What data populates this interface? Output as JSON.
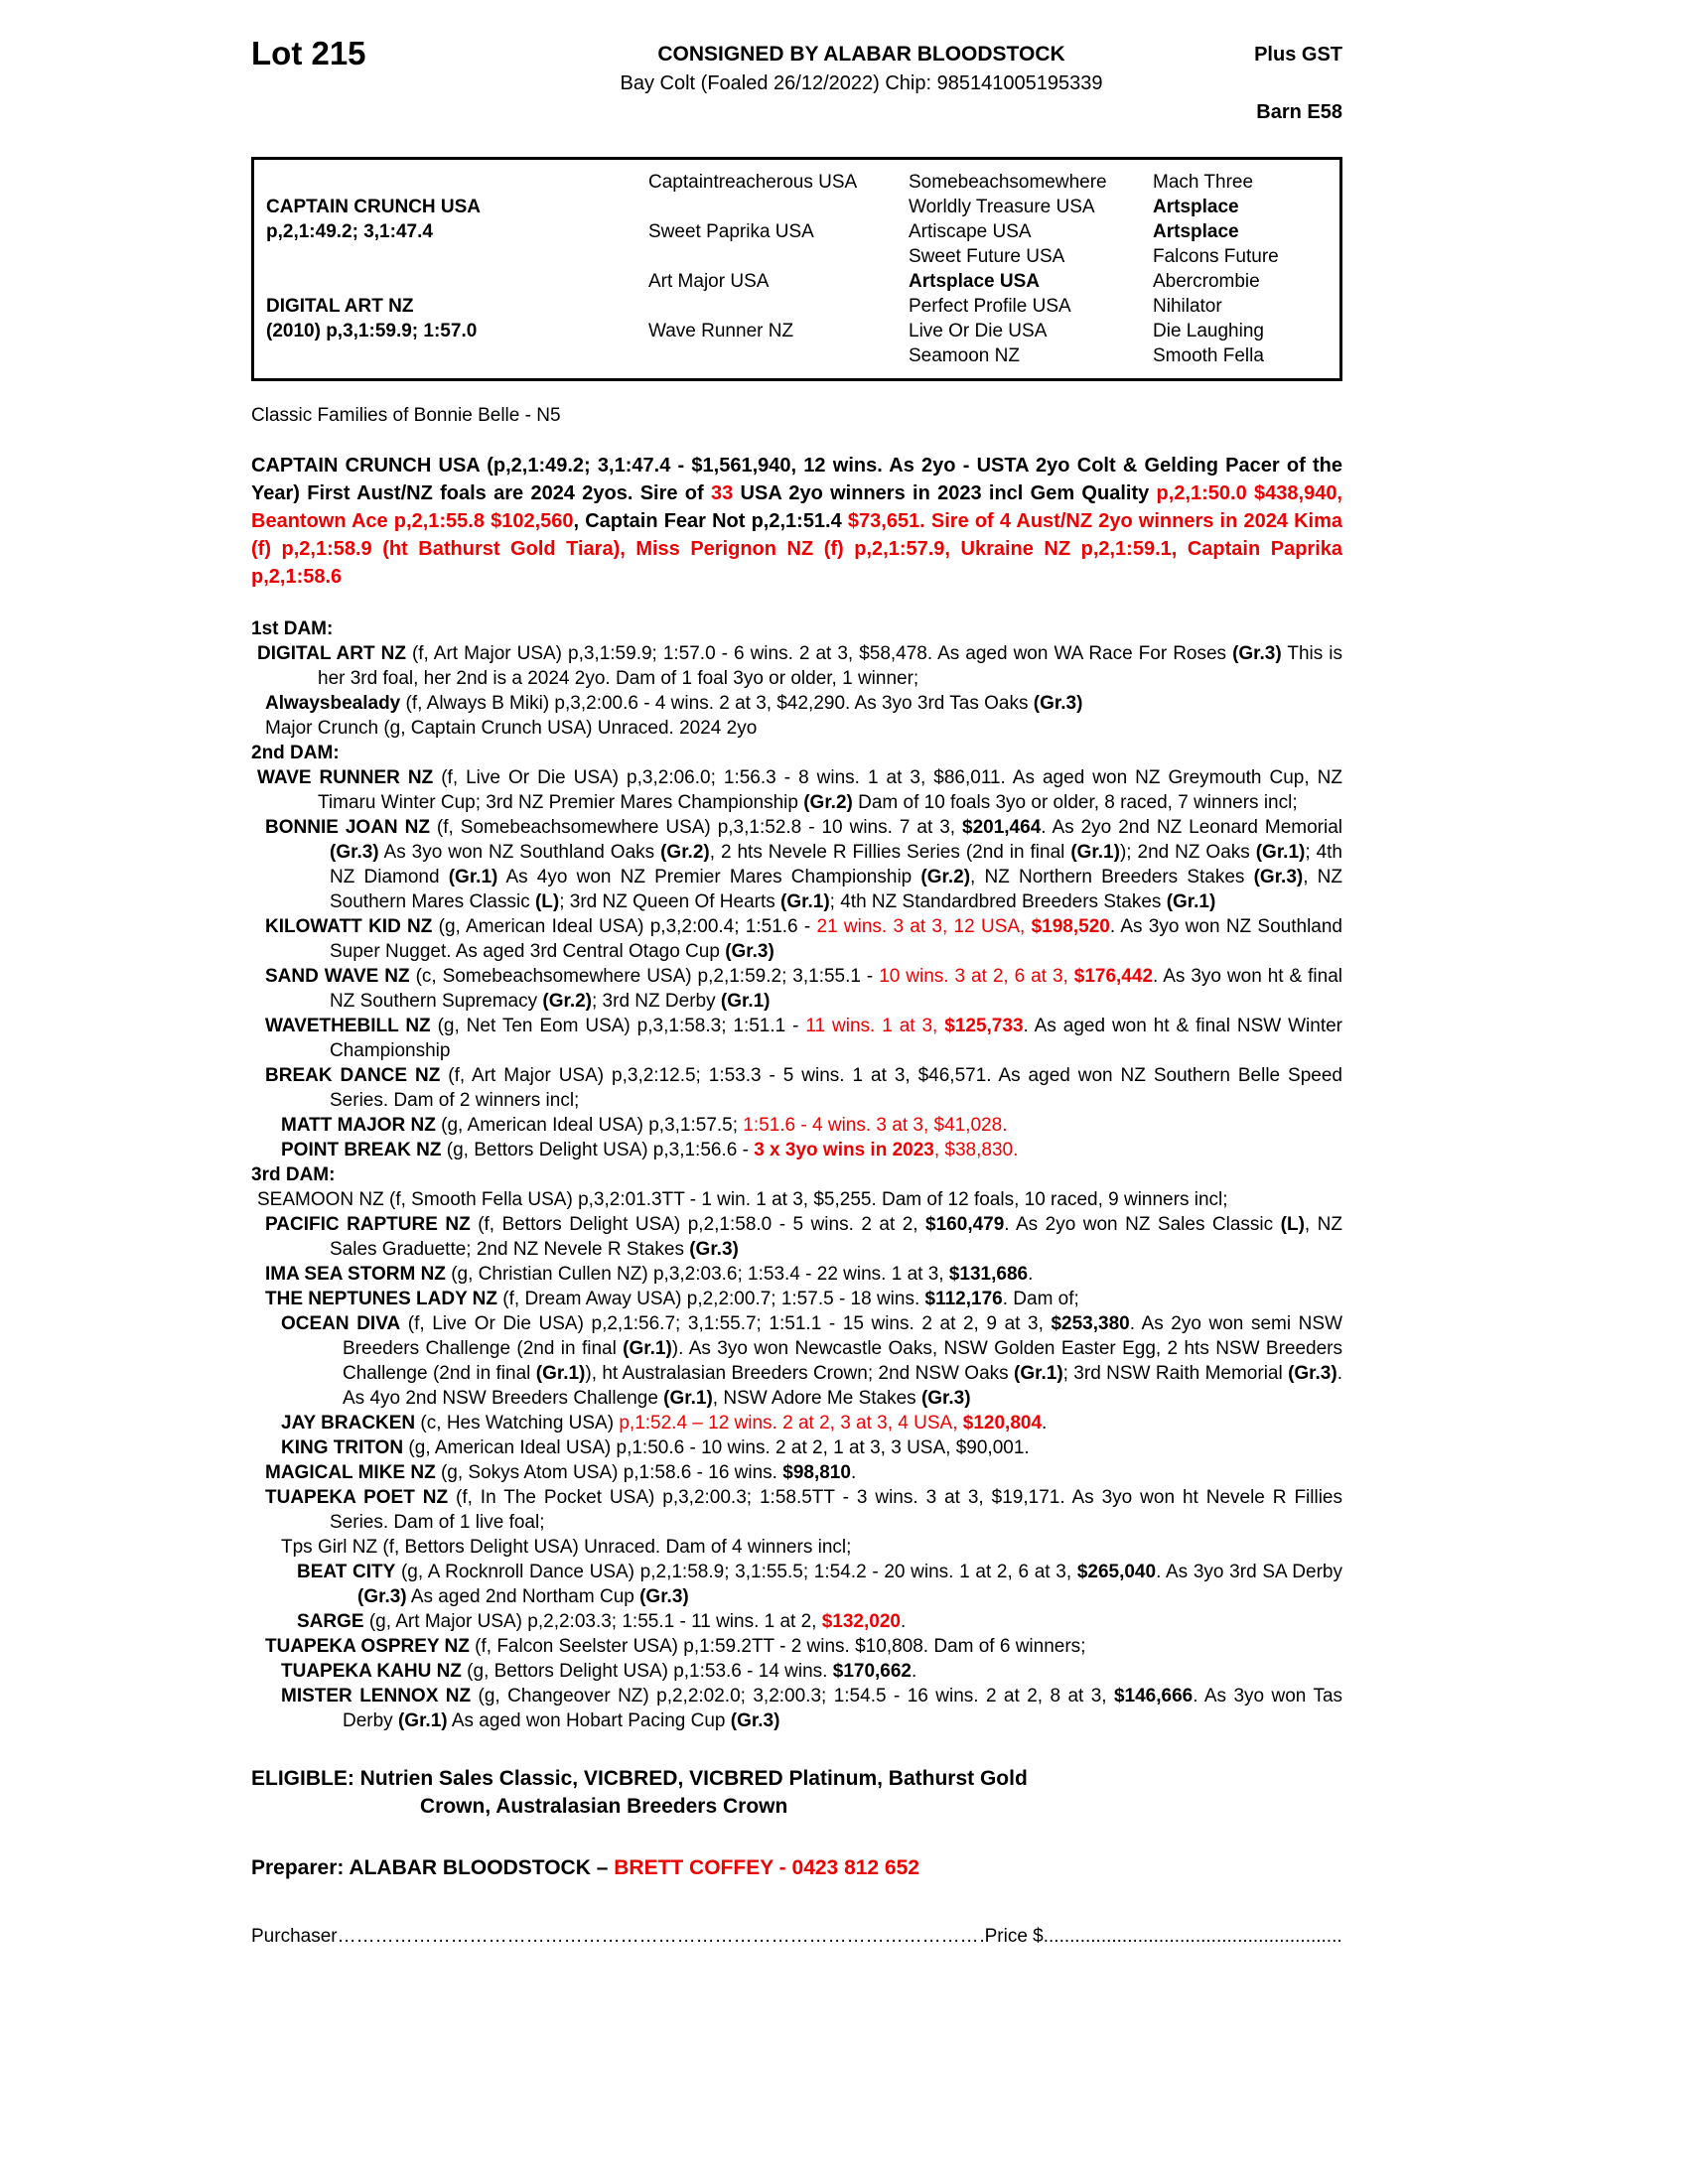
{
  "header": {
    "lot": "Lot 215",
    "consigned": "CONSIGNED BY ALABAR BLOODSTOCK",
    "plus_gst": "Plus GST",
    "bay_line": "Bay Colt (Foaled 26/12/2022) Chip: 985141005195339",
    "barn": "Barn E58"
  },
  "pedigree": {
    "col1": [
      {
        "row": 2,
        "text": "CAPTAIN CRUNCH USA",
        "bold": true
      },
      {
        "row": 3,
        "text": "p,2,1:49.2; 3,1:47.4",
        "bold": true
      },
      {
        "row": 6,
        "text": "DIGITAL ART NZ",
        "bold": true
      },
      {
        "row": 7,
        "text": "(2010) p,3,1:59.9; 1:57.0",
        "bold": true
      }
    ],
    "col2": [
      {
        "row": 1,
        "text": "Captaintreacherous USA"
      },
      {
        "row": 3,
        "text": "Sweet Paprika USA"
      },
      {
        "row": 5,
        "text": "Art Major USA"
      },
      {
        "row": 7,
        "text": "Wave Runner NZ"
      }
    ],
    "col3": [
      {
        "row": 1,
        "text": "Somebeachsomewhere"
      },
      {
        "row": 2,
        "text": "Worldly Treasure USA"
      },
      {
        "row": 3,
        "text": "Artiscape USA"
      },
      {
        "row": 4,
        "text": "Sweet Future USA"
      },
      {
        "row": 5,
        "text": "Artsplace USA",
        "bold": true
      },
      {
        "row": 6,
        "text": "Perfect Profile USA"
      },
      {
        "row": 7,
        "text": "Live Or Die USA"
      },
      {
        "row": 8,
        "text": "Seamoon NZ"
      }
    ],
    "col4": [
      {
        "row": 1,
        "text": "Mach Three"
      },
      {
        "row": 2,
        "text": "Artsplace",
        "bold": true
      },
      {
        "row": 3,
        "text": "Artsplace",
        "bold": true
      },
      {
        "row": 4,
        "text": "Falcons Future"
      },
      {
        "row": 5,
        "text": "Abercrombie"
      },
      {
        "row": 6,
        "text": "Nihilator"
      },
      {
        "row": 7,
        "text": "Die Laughing"
      },
      {
        "row": 8,
        "text": "Smooth Fella"
      }
    ]
  },
  "family_note": "Classic Families of Bonnie Belle - N5",
  "sire_paragraph": [
    [
      "b",
      "CAPTAIN CRUNCH USA (p,2,1:49.2; 3,1:47.4 - $1,561,940, 12 wins. As 2yo - USTA 2yo Colt & Gelding Pacer of the Year) First Aust/NZ foals are 2024 2yos. Sire of "
    ],
    [
      "rb",
      "33"
    ],
    [
      "b",
      " USA 2yo winners in 2023 incl Gem Quality "
    ],
    [
      "rb",
      "p,2,1:50.0 $438,940, Beantown Ace p,2,1:55.8 $102,560"
    ],
    [
      "b",
      ", Captain Fear Not p,2,1:51.4 "
    ],
    [
      "rb",
      "$73,651. Sire of 4 Aust/NZ 2yo winners in 2024 Kima (f) p,2,1:58.9 (ht Bathurst Gold Tiara), Miss Perignon NZ (f) p,2,1:57.9, Ukraine NZ p,2,1:59.1, Captain Paprika p,2,1:58.6"
    ]
  ],
  "sections": [
    {
      "heading": "1st DAM:",
      "entries": [
        {
          "indent": 1,
          "segments": [
            [
              "b",
              "DIGITAL ART NZ"
            ],
            [
              "n",
              " (f, Art Major USA) p,3,1:59.9; 1:57.0 - 6 wins. 2 at 3, $58,478. As aged won WA Race For Roses "
            ],
            [
              "b",
              "(Gr.3)"
            ],
            [
              "n",
              " This is her 3rd foal, her 2nd is a 2024 2yo. Dam of 1 foal 3yo or older, 1 winner;"
            ]
          ]
        },
        {
          "indent": 2,
          "segments": [
            [
              "b",
              "Alwaysbealady"
            ],
            [
              "n",
              " (f, Always B Miki) p,3,2:00.6 - 4 wins. 2 at 3, $42,290. As 3yo 3rd Tas Oaks "
            ],
            [
              "b",
              "(Gr.3)"
            ]
          ]
        },
        {
          "indent": 2,
          "segments": [
            [
              "n",
              "Major Crunch (g, Captain Crunch USA) Unraced. 2024 2yo"
            ]
          ]
        }
      ]
    },
    {
      "heading": "2nd DAM:",
      "entries": [
        {
          "indent": 1,
          "segments": [
            [
              "b",
              "WAVE RUNNER NZ"
            ],
            [
              "n",
              " (f, Live Or Die USA) p,3,2:06.0; 1:56.3 - 8 wins. 1 at 3, $86,011. As aged won NZ Greymouth Cup, NZ Timaru Winter Cup; 3rd NZ Premier Mares Championship "
            ],
            [
              "b",
              "(Gr.2)"
            ],
            [
              "n",
              " Dam of 10 foals 3yo or older, 8 raced, 7 winners incl;"
            ]
          ]
        },
        {
          "indent": 2,
          "segments": [
            [
              "b",
              "BONNIE JOAN NZ"
            ],
            [
              "n",
              " (f, Somebeachsomewhere USA) p,3,1:52.8 - 10 wins. 7 at 3, "
            ],
            [
              "b",
              "$201,464"
            ],
            [
              "n",
              ". As 2yo 2nd NZ Leonard Memorial "
            ],
            [
              "b",
              "(Gr.3)"
            ],
            [
              "n",
              " As 3yo won NZ Southland Oaks "
            ],
            [
              "b",
              "(Gr.2)"
            ],
            [
              "n",
              ", 2 hts Nevele R Fillies Series (2nd in final "
            ],
            [
              "b",
              "(Gr.1)"
            ],
            [
              "n",
              "); 2nd NZ Oaks "
            ],
            [
              "b",
              "(Gr.1)"
            ],
            [
              "n",
              "; 4th NZ Diamond "
            ],
            [
              "b",
              "(Gr.1)"
            ],
            [
              "n",
              " As 4yo won NZ Premier Mares Championship "
            ],
            [
              "b",
              "(Gr.2)"
            ],
            [
              "n",
              ", NZ Northern Breeders Stakes "
            ],
            [
              "b",
              "(Gr.3)"
            ],
            [
              "n",
              ", NZ Southern Mares Classic "
            ],
            [
              "b",
              "(L)"
            ],
            [
              "n",
              "; 3rd NZ Queen Of Hearts "
            ],
            [
              "b",
              "(Gr.1)"
            ],
            [
              "n",
              "; 4th NZ Standardbred Breeders Stakes "
            ],
            [
              "b",
              "(Gr.1)"
            ]
          ]
        },
        {
          "indent": 2,
          "segments": [
            [
              "b",
              "KILOWATT KID NZ"
            ],
            [
              "n",
              " (g, American Ideal USA) p,3,2:00.4; 1:51.6 - "
            ],
            [
              "r",
              "21 wins. 3 at 3, 12 USA, "
            ],
            [
              "rb",
              "$198,520"
            ],
            [
              "n",
              ". As 3yo won NZ Southland Super Nugget. As aged 3rd Central Otago Cup "
            ],
            [
              "b",
              "(Gr.3)"
            ]
          ]
        },
        {
          "indent": 2,
          "segments": [
            [
              "b",
              "SAND WAVE NZ"
            ],
            [
              "n",
              " (c, Somebeachsomewhere USA) p,2,1:59.2; 3,1:55.1 - "
            ],
            [
              "r",
              "10 wins. 3 at 2, 6 at 3, "
            ],
            [
              "rb",
              "$176,442"
            ],
            [
              "n",
              ". As 3yo won ht & final NZ Southern Supremacy "
            ],
            [
              "b",
              "(Gr.2)"
            ],
            [
              "n",
              "; 3rd NZ Derby "
            ],
            [
              "b",
              "(Gr.1)"
            ]
          ]
        },
        {
          "indent": 2,
          "segments": [
            [
              "b",
              "WAVETHEBILL NZ"
            ],
            [
              "n",
              " (g, Net Ten Eom USA) p,3,1:58.3; 1:51.1 - "
            ],
            [
              "r",
              "11 wins. 1 at 3, "
            ],
            [
              "rb",
              "$125,733"
            ],
            [
              "n",
              ". As aged won ht & final NSW Winter Championship"
            ]
          ]
        },
        {
          "indent": 2,
          "segments": [
            [
              "b",
              "BREAK DANCE NZ"
            ],
            [
              "n",
              " (f, Art Major USA) p,3,2:12.5; 1:53.3 - 5 wins. 1 at 3, $46,571. As aged won NZ Southern Belle Speed Series. Dam of 2 winners incl;"
            ]
          ]
        },
        {
          "indent": 3,
          "segments": [
            [
              "b",
              "MATT MAJOR NZ"
            ],
            [
              "n",
              " (g, American Ideal USA) p,3,1:57.5; "
            ],
            [
              "r",
              "1:51.6 - 4 wins. 3 at 3, $41,028."
            ]
          ]
        },
        {
          "indent": 3,
          "segments": [
            [
              "b",
              "POINT BREAK NZ"
            ],
            [
              "n",
              " (g, Bettors Delight USA) p,3,1:56.6 - "
            ],
            [
              "rb",
              "3 x 3yo wins in 2023"
            ],
            [
              "r",
              ", $38,830."
            ]
          ]
        }
      ]
    },
    {
      "heading": "3rd DAM:",
      "entries": [
        {
          "indent": 1,
          "segments": [
            [
              "n",
              "SEAMOON NZ (f, Smooth Fella USA) p,3,2:01.3TT - 1 win. 1 at 3, $5,255. Dam of 12 foals, 10 raced, 9 winners incl;"
            ]
          ]
        },
        {
          "indent": 2,
          "segments": [
            [
              "b",
              "PACIFIC RAPTURE NZ"
            ],
            [
              "n",
              " (f, Bettors Delight USA) p,2,1:58.0 - 5 wins. 2 at 2, "
            ],
            [
              "b",
              "$160,479"
            ],
            [
              "n",
              ". As 2yo won NZ Sales Classic "
            ],
            [
              "b",
              "(L)"
            ],
            [
              "n",
              ", NZ Sales Graduette; 2nd NZ Nevele R Stakes "
            ],
            [
              "b",
              "(Gr.3)"
            ]
          ]
        },
        {
          "indent": 2,
          "segments": [
            [
              "b",
              "IMA SEA STORM NZ"
            ],
            [
              "n",
              " (g, Christian Cullen NZ) p,3,2:03.6; 1:53.4 - 22 wins. 1 at 3, "
            ],
            [
              "b",
              "$131,686"
            ],
            [
              "n",
              "."
            ]
          ]
        },
        {
          "indent": 2,
          "segments": [
            [
              "b",
              "THE NEPTUNES LADY NZ"
            ],
            [
              "n",
              " (f, Dream Away USA) p,2,2:00.7; 1:57.5 - 18 wins. "
            ],
            [
              "b",
              "$112,176"
            ],
            [
              "n",
              ". Dam of;"
            ]
          ]
        },
        {
          "indent": 3,
          "segments": [
            [
              "b",
              "OCEAN DIVA"
            ],
            [
              "n",
              " (f, Live Or Die USA) p,2,1:56.7; 3,1:55.7; 1:51.1 - 15 wins. 2 at 2, 9 at 3, "
            ],
            [
              "b",
              "$253,380"
            ],
            [
              "n",
              ". As 2yo won semi NSW Breeders Challenge (2nd in final "
            ],
            [
              "b",
              "(Gr.1)"
            ],
            [
              "n",
              "). As 3yo won Newcastle Oaks, NSW Golden Easter Egg, 2 hts NSW Breeders Challenge (2nd in final "
            ],
            [
              "b",
              "(Gr.1)"
            ],
            [
              "n",
              "), ht Australasian Breeders Crown; 2nd NSW Oaks "
            ],
            [
              "b",
              "(Gr.1)"
            ],
            [
              "n",
              "; 3rd NSW Raith Memorial "
            ],
            [
              "b",
              "(Gr.3)"
            ],
            [
              "n",
              ". As 4yo 2nd NSW Breeders Challenge "
            ],
            [
              "b",
              "(Gr.1)"
            ],
            [
              "n",
              ", NSW Adore Me Stakes "
            ],
            [
              "b",
              "(Gr.3)"
            ]
          ]
        },
        {
          "indent": 3,
          "segments": [
            [
              "b",
              "JAY BRACKEN"
            ],
            [
              "n",
              " (c, Hes Watching USA) "
            ],
            [
              "r",
              "p,1:52.4 – 12 wins. 2 at 2, 3 at 3, 4 USA, "
            ],
            [
              "rb",
              "$120,804"
            ],
            [
              "n",
              "."
            ]
          ]
        },
        {
          "indent": 3,
          "segments": [
            [
              "b",
              "KING TRITON"
            ],
            [
              "n",
              " (g, American Ideal USA) p,1:50.6 - 10 wins. 2 at 2, 1 at 3, 3 USA, $90,001."
            ]
          ]
        },
        {
          "indent": 2,
          "segments": [
            [
              "b",
              "MAGICAL MIKE NZ"
            ],
            [
              "n",
              " (g, Sokys Atom USA) p,1:58.6 - 16 wins. "
            ],
            [
              "b",
              "$98,810"
            ],
            [
              "n",
              "."
            ]
          ]
        },
        {
          "indent": 2,
          "segments": [
            [
              "b",
              "TUAPEKA POET NZ"
            ],
            [
              "n",
              " (f, In The Pocket USA) p,3,2:00.3; 1:58.5TT - 3 wins. 3 at 3, $19,171. As 3yo won ht Nevele R Fillies Series. Dam of 1 live foal;"
            ]
          ]
        },
        {
          "indent": 3,
          "segments": [
            [
              "n",
              "Tps Girl NZ (f, Bettors Delight USA) Unraced. Dam of 4 winners incl;"
            ]
          ]
        },
        {
          "indent": 4,
          "segments": [
            [
              "b",
              "BEAT CITY"
            ],
            [
              "n",
              " (g, A Rocknroll Dance USA) p,2,1:58.9; 3,1:55.5; 1:54.2 - 20 wins. 1 at 2, 6 at 3, "
            ],
            [
              "b",
              "$265,040"
            ],
            [
              "n",
              ". As 3yo 3rd SA Derby "
            ],
            [
              "b",
              "(Gr.3)"
            ],
            [
              "n",
              " As aged 2nd Northam Cup "
            ],
            [
              "b",
              "(Gr.3)"
            ]
          ]
        },
        {
          "indent": 4,
          "segments": [
            [
              "b",
              "SARGE"
            ],
            [
              "n",
              " (g, Art Major USA) p,2,2:03.3; 1:55.1 - 11 wins. 1 at 2, "
            ],
            [
              "rb",
              "$132,020"
            ],
            [
              "n",
              "."
            ]
          ]
        },
        {
          "indent": 2,
          "segments": [
            [
              "b",
              "TUAPEKA OSPREY NZ"
            ],
            [
              "n",
              " (f, Falcon Seelster USA) p,1:59.2TT - 2 wins. $10,808. Dam of 6 winners;"
            ]
          ]
        },
        {
          "indent": 3,
          "segments": [
            [
              "b",
              "TUAPEKA KAHU NZ"
            ],
            [
              "n",
              " (g, Bettors Delight USA) p,1:53.6 - 14 wins. "
            ],
            [
              "b",
              "$170,662"
            ],
            [
              "n",
              "."
            ]
          ]
        },
        {
          "indent": 3,
          "segments": [
            [
              "b",
              "MISTER LENNOX NZ"
            ],
            [
              "n",
              " (g, Changeover NZ) p,2,2:02.0; 3,2:00.3; 1:54.5 - 16 wins. 2 at 2, 8 at 3, "
            ],
            [
              "b",
              "$146,666"
            ],
            [
              "n",
              ". As 3yo won Tas Derby "
            ],
            [
              "b",
              "(Gr.1)"
            ],
            [
              "n",
              " As aged won Hobart Pacing Cup "
            ],
            [
              "b",
              "(Gr.3)"
            ]
          ]
        }
      ]
    }
  ],
  "eligible": {
    "line1": "ELIGIBLE: Nutrien Sales Classic, VICBRED, VICBRED Platinum, Bathurst Gold",
    "line2": "Crown, Australasian Breeders Crown"
  },
  "preparer": [
    [
      "b",
      "Preparer: ALABAR BLOODSTOCK – "
    ],
    [
      "rb",
      "BRETT COFFEY - 0423 812 652"
    ]
  ],
  "footer": {
    "purchaser_label": "Purchaser",
    "dots1": "………………………………………………………………………………………………………………",
    "price_label": "Price $",
    "dots2": "....................................................................."
  },
  "colors": {
    "accent_red": "#ee0000",
    "ink": "#000000",
    "paper": "#ffffff"
  }
}
